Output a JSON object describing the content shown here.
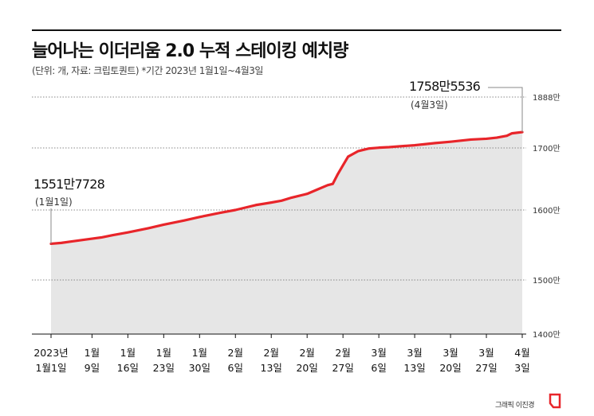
{
  "header": {
    "title": "늘어나는 이더리움 2.0 누적 스테이킹 예치량",
    "subtitle": "(단위: 개, 자료: 크립토퀀트) *기간 2023년 1월1일~4월3일"
  },
  "footer": {
    "credit": "그래픽 이진경"
  },
  "colors": {
    "line": "#e8252a",
    "area": "#e6e6e6",
    "grid": "#888888"
  },
  "chart_data": {
    "type": "area",
    "title": "늘어나는 이더리움 2.0 누적 스테이킹 예치량",
    "ylim": [
      14000000,
      18880000
    ],
    "y_ticks": [
      {
        "value": 14000000,
        "label": "1400만"
      },
      {
        "value": 15000000,
        "label": "1500만"
      },
      {
        "value": 16000000,
        "label": "1600만"
      },
      {
        "value": 17000000,
        "label": "1700만"
      },
      {
        "value": 18880000,
        "label": "1888만"
      }
    ],
    "x_ticks": [
      {
        "date": "2023-01-01",
        "line1": "2023년",
        "line2": "1월1일"
      },
      {
        "date": "2023-01-09",
        "line1": "1월",
        "line2": "9일"
      },
      {
        "date": "2023-01-16",
        "line1": "1월",
        "line2": "16일"
      },
      {
        "date": "2023-01-23",
        "line1": "1월",
        "line2": "23일"
      },
      {
        "date": "2023-01-30",
        "line1": "1월",
        "line2": "30일"
      },
      {
        "date": "2023-02-06",
        "line1": "2월",
        "line2": "6일"
      },
      {
        "date": "2023-02-13",
        "line1": "2월",
        "line2": "13일"
      },
      {
        "date": "2023-02-20",
        "line1": "2월",
        "line2": "20일"
      },
      {
        "date": "2023-02-27",
        "line1": "2월",
        "line2": "27일"
      },
      {
        "date": "2023-03-06",
        "line1": "3월",
        "line2": "6일"
      },
      {
        "date": "2023-03-13",
        "line1": "3월",
        "line2": "13일"
      },
      {
        "date": "2023-03-20",
        "line1": "3월",
        "line2": "20일"
      },
      {
        "date": "2023-03-27",
        "line1": "3월",
        "line2": "27일"
      },
      {
        "date": "2023-04-03",
        "line1": "4월",
        "line2": "3일"
      }
    ],
    "series": [
      {
        "points": [
          [
            "2023-01-01",
            15517728
          ],
          [
            "2023-01-03",
            15530000
          ],
          [
            "2023-01-05",
            15550000
          ],
          [
            "2023-01-07",
            15570000
          ],
          [
            "2023-01-09",
            15590000
          ],
          [
            "2023-01-11",
            15610000
          ],
          [
            "2023-01-13",
            15640000
          ],
          [
            "2023-01-16",
            15680000
          ],
          [
            "2023-01-18",
            15710000
          ],
          [
            "2023-01-20",
            15740000
          ],
          [
            "2023-01-23",
            15790000
          ],
          [
            "2023-01-25",
            15820000
          ],
          [
            "2023-01-27",
            15850000
          ],
          [
            "2023-01-30",
            15900000
          ],
          [
            "2023-02-01",
            15930000
          ],
          [
            "2023-02-03",
            15960000
          ],
          [
            "2023-02-06",
            16000000
          ],
          [
            "2023-02-08",
            16040000
          ],
          [
            "2023-02-10",
            16080000
          ],
          [
            "2023-02-13",
            16120000
          ],
          [
            "2023-02-15",
            16150000
          ],
          [
            "2023-02-17",
            16200000
          ],
          [
            "2023-02-20",
            16260000
          ],
          [
            "2023-02-22",
            16330000
          ],
          [
            "2023-02-24",
            16400000
          ],
          [
            "2023-02-25",
            16420000
          ],
          [
            "2023-02-26",
            16580000
          ],
          [
            "2023-02-27",
            16720000
          ],
          [
            "2023-02-28",
            16860000
          ],
          [
            "2023-03-02",
            16950000
          ],
          [
            "2023-03-04",
            16990000
          ],
          [
            "2023-03-06",
            17010000
          ],
          [
            "2023-03-08",
            17030000
          ],
          [
            "2023-03-10",
            17060000
          ],
          [
            "2023-03-13",
            17100000
          ],
          [
            "2023-03-15",
            17140000
          ],
          [
            "2023-03-17",
            17180000
          ],
          [
            "2023-03-20",
            17230000
          ],
          [
            "2023-03-22",
            17270000
          ],
          [
            "2023-03-24",
            17310000
          ],
          [
            "2023-03-27",
            17340000
          ],
          [
            "2023-03-29",
            17380000
          ],
          [
            "2023-03-31",
            17450000
          ],
          [
            "2023-04-01",
            17540000
          ],
          [
            "2023-04-03",
            17585536
          ]
        ]
      }
    ],
    "annotations": [
      {
        "date": "2023-01-01",
        "value": 15517728,
        "label": "1551만7728",
        "sublabel": "(1월1일)"
      },
      {
        "date": "2023-04-03",
        "value": 17585536,
        "label": "1758만5536",
        "sublabel": "(4월3일)"
      }
    ],
    "grid": true,
    "legend": "none"
  }
}
